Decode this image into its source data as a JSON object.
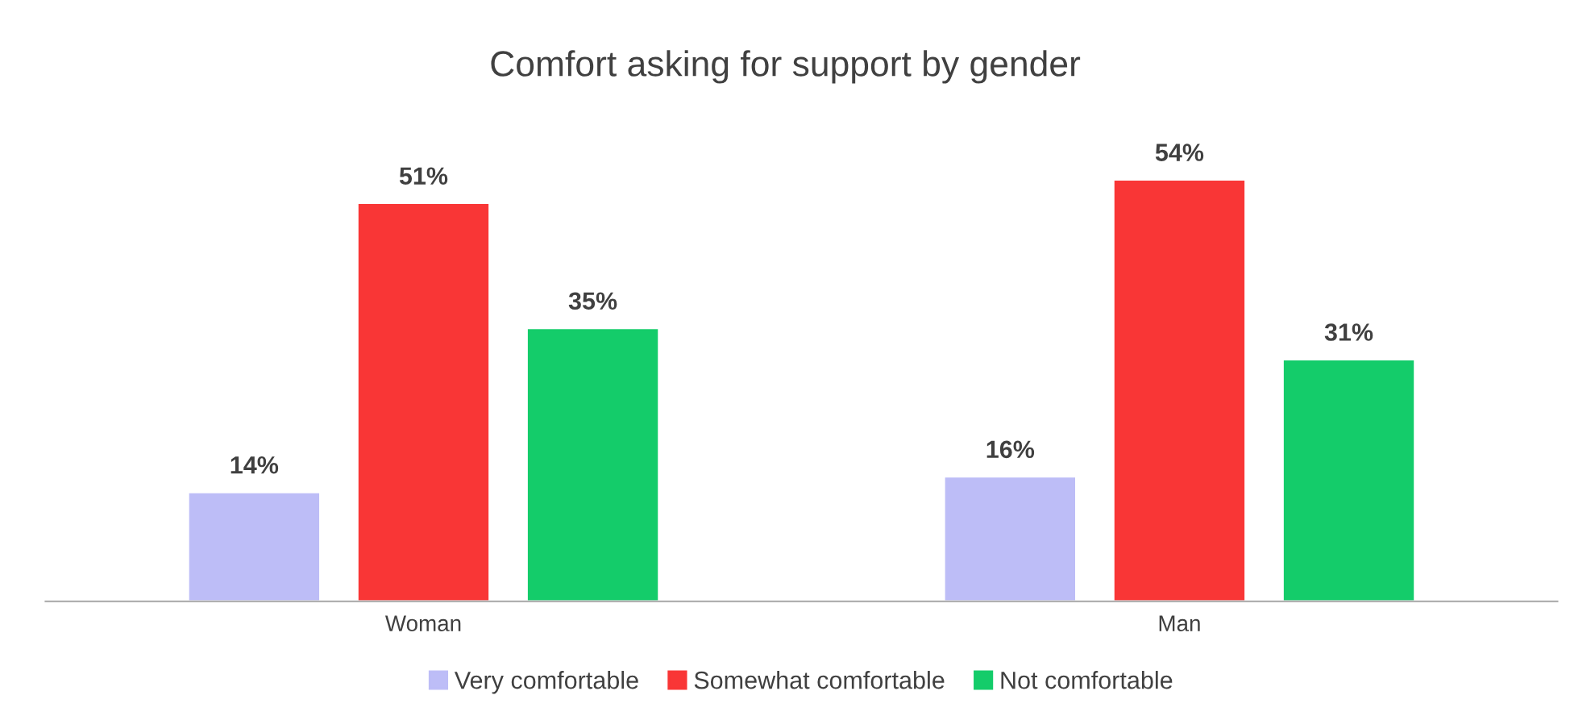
{
  "chart_data": {
    "type": "bar",
    "title": "Comfort asking for support by gender",
    "categories": [
      "Woman",
      "Man"
    ],
    "series": [
      {
        "name": "Very comfortable",
        "color": "#bdbdf7",
        "values": [
          14,
          16
        ],
        "value_labels": [
          "14%",
          "16%"
        ]
      },
      {
        "name": "Somewhat comfortable",
        "color": "#f93636",
        "values": [
          51,
          54
        ],
        "value_labels": [
          "51%",
          "54%"
        ]
      },
      {
        "name": "Not comfortable",
        "color": "#14cc6a",
        "values": [
          35,
          31
        ],
        "value_labels": [
          "35%",
          "31%"
        ]
      }
    ],
    "legend": "bottom",
    "grid": false
  }
}
